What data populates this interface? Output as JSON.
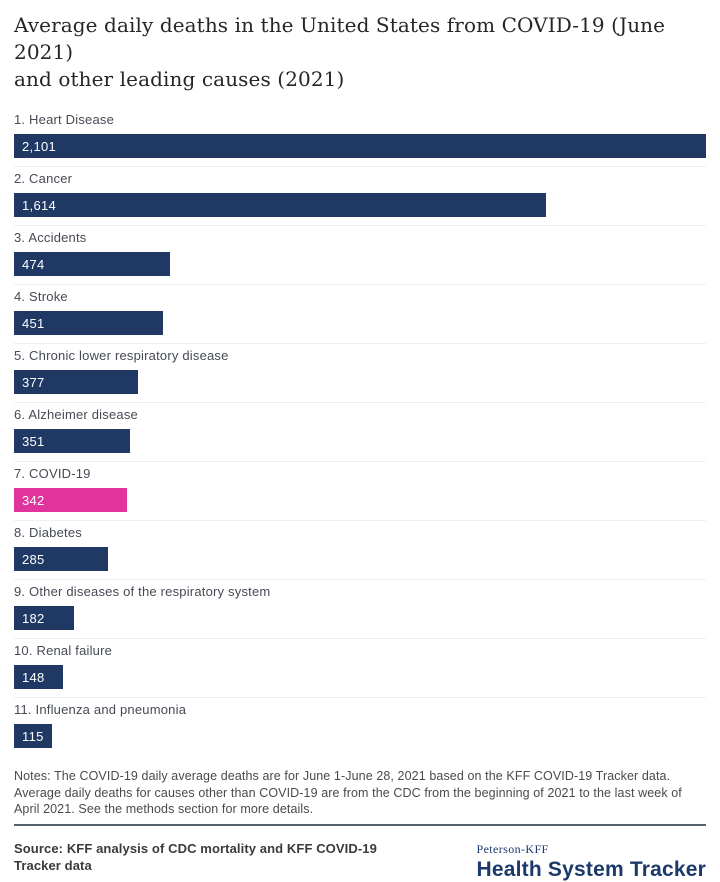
{
  "title_lines": [
    "Average daily deaths in the United States from COVID-19 (June 2021)",
    "and other leading causes (2021)"
  ],
  "chart_data": {
    "type": "bar",
    "orientation": "horizontal",
    "title": "Average daily deaths in the United States from COVID-19 (June 2021) and other leading causes (2021)",
    "categories": [
      "1. Heart Disease",
      "2. Cancer",
      "3. Accidents",
      "4. Stroke",
      "5. Chronic lower respiratory disease",
      "6. Alzheimer disease",
      "7. COVID-19",
      "8. Diabetes",
      "9. Other diseases of the respiratory system",
      "10. Renal failure",
      "11. Influenza and pneumonia"
    ],
    "values": [
      2101,
      1614,
      474,
      451,
      377,
      351,
      342,
      285,
      182,
      148,
      115
    ],
    "value_labels": [
      "2,101",
      "1,614",
      "474",
      "451",
      "377",
      "351",
      "342",
      "285",
      "182",
      "148",
      "115"
    ],
    "highlight_index": 6,
    "xlim": [
      0,
      2101
    ],
    "bar_color": "#203864",
    "highlight_color": "#e0339c",
    "grid": "off",
    "value_label_position": "inside-left"
  },
  "notes": "Notes: The COVID-19 daily average deaths are for June 1-June 28, 2021 based on the KFF COVID-19 Tracker data. Average daily deaths for causes other than COVID-19 are from the CDC from the beginning of 2021 to the last week of April 2021.  See the methods section for more details.",
  "source": "Source: KFF analysis of CDC mortality and KFF COVID-19 Tracker data",
  "logo": {
    "brand": "Peterson-KFF",
    "name": "Health System Tracker"
  }
}
